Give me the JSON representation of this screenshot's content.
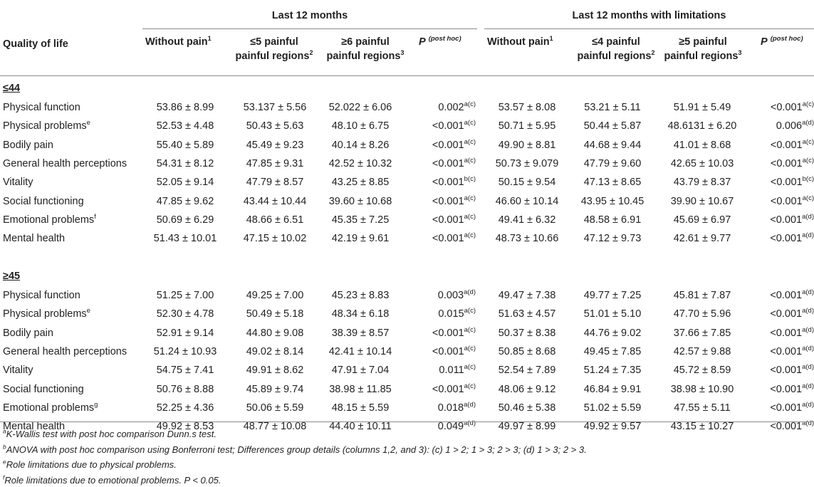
{
  "headers": {
    "group1": "Last 12 months",
    "group2": "Last 12 months with limitations",
    "qol": "Quality of life",
    "without_pain": "Without pain",
    "sup1": "1",
    "sup2": "2",
    "sup3": "3",
    "painful_regions": "painful regions",
    "g1_col2_prefix": "≤5 painful",
    "g1_col3_prefix": "≥6 painful",
    "g2_col2_prefix": "≤4 painful",
    "g2_col3_prefix": "≥5 painful",
    "p_label": "P",
    "post_hoc": "(post hoc)"
  },
  "groups": [
    {
      "label": "≤44",
      "rows": [
        {
          "name": "Physical function",
          "sup": "",
          "v": [
            "53.86 ± 8.99",
            "53.137 ± 5.56",
            "52.022 ± 6.06"
          ],
          "p1": "0.002",
          "p1s": "a(c)",
          "w": [
            "53.57 ± 8.08",
            "53.21 ± 5.11",
            "51.91 ± 5.49"
          ],
          "p2": "<0.001",
          "p2s": "a(c)"
        },
        {
          "name": "Physical problems",
          "sup": "e",
          "v": [
            "52.53 ± 4.48",
            "50.43 ± 5.63",
            "48.10 ± 6.75"
          ],
          "p1": "<0.001",
          "p1s": "a(c)",
          "w": [
            "50.71 ± 5.95",
            "50.44 ± 5.87",
            "48.6131 ± 6.20"
          ],
          "p2": "0.006",
          "p2s": "a(d)"
        },
        {
          "name": "Bodily pain",
          "sup": "",
          "v": [
            "55.40 ± 5.89",
            "45.49 ± 9.23",
            "40.14 ± 8.26"
          ],
          "p1": "<0.001",
          "p1s": "a(c)",
          "w": [
            "49.90 ± 8.81",
            "44.68 ± 9.44",
            "41.01 ± 8.68"
          ],
          "p2": "<0.001",
          "p2s": "a(c)"
        },
        {
          "name": "General health perceptions",
          "sup": "",
          "v": [
            "54.31 ± 8.12",
            "47.85 ± 9.31",
            "42.52 ± 10.32"
          ],
          "p1": "<0.001",
          "p1s": "a(c)",
          "w": [
            "50.73 ± 9.079",
            "47.79 ± 9.60",
            "42.65 ± 10.03"
          ],
          "p2": "<0.001",
          "p2s": "a(c)"
        },
        {
          "name": "Vitality",
          "sup": "",
          "v": [
            "52.05 ± 9.14",
            "47.79 ± 8.57",
            "43.25 ± 8.85"
          ],
          "p1": "<0.001",
          "p1s": "b(c)",
          "w": [
            "50.15 ± 9.54",
            "47.13 ± 8.65",
            "43.79 ± 8.37"
          ],
          "p2": "<0.001",
          "p2s": "b(c)"
        },
        {
          "name": "Social functioning",
          "sup": "",
          "v": [
            "47.85 ± 9.62",
            "43.44 ± 10.44",
            "39.60 ± 10.68"
          ],
          "p1": "<0.001",
          "p1s": "a(c)",
          "w": [
            "46.60 ± 10.14",
            "43.95 ± 10.45",
            "39.90 ± 10.67"
          ],
          "p2": "<0.001",
          "p2s": "a(c)"
        },
        {
          "name": "Emotional problems",
          "sup": "f",
          "v": [
            "50.69 ± 6.29",
            "48.66 ± 6.51",
            "45.35 ± 7.25"
          ],
          "p1": "<0.001",
          "p1s": "a(c)",
          "w": [
            "49.41 ± 6.32",
            "48.58 ± 6.91",
            "45.69 ± 6.97"
          ],
          "p2": "<0.001",
          "p2s": "a(d)"
        },
        {
          "name": "Mental health",
          "sup": "",
          "v": [
            "51.43 ± 10.01",
            "47.15 ± 10.02",
            "42.19 ± 9.61"
          ],
          "p1": "<0.001",
          "p1s": "a(c)",
          "w": [
            "48.73 ± 10.66",
            "47.12 ± 9.73",
            "42.61 ± 9.77"
          ],
          "p2": "<0.001",
          "p2s": "a(d)"
        }
      ]
    },
    {
      "label": "≥45",
      "rows": [
        {
          "name": "Physical function",
          "sup": "",
          "v": [
            "51.25 ± 7.00",
            "49.25 ± 7.00",
            "45.23 ± 8.83"
          ],
          "p1": "0.003",
          "p1s": "a(d)",
          "w": [
            "49.47 ± 7.38",
            "49.77 ± 7.25",
            "45.81 ± 7.87"
          ],
          "p2": "<0.001",
          "p2s": "a(d)"
        },
        {
          "name": "Physical problems",
          "sup": "e",
          "v": [
            "52.30 ± 4.78",
            "50.49 ± 5.18",
            "48.34 ± 6.18"
          ],
          "p1": "0.015",
          "p1s": "a(c)",
          "w": [
            "51.63 ± 4.57",
            "51.01 ± 5.10",
            "47.70 ± 5.96"
          ],
          "p2": "<0.001",
          "p2s": "a(d)"
        },
        {
          "name": "Bodily pain",
          "sup": "",
          "v": [
            "52.91 ± 9.14",
            "44.80 ± 9.08",
            "38.39 ± 8.57"
          ],
          "p1": "<0.001",
          "p1s": "a(c)",
          "w": [
            "50.37 ± 8.38",
            "44.76 ± 9.02",
            "37.66 ± 7.85"
          ],
          "p2": "<0.001",
          "p2s": "a(d)"
        },
        {
          "name": "General health perceptions",
          "sup": "",
          "v": [
            "51.24 ± 10.93",
            "49.02 ± 8.14",
            "42.41 ± 10.14"
          ],
          "p1": "<0.001",
          "p1s": "a(c)",
          "w": [
            "50.85 ± 8.68",
            "49.45 ± 7.85",
            "42.57 ± 9.88"
          ],
          "p2": "<0.001",
          "p2s": "a(d)"
        },
        {
          "name": "Vitality",
          "sup": "",
          "v": [
            "54.75 ± 7.41",
            "49.91 ± 8.62",
            "47.91 ± 7.04"
          ],
          "p1": "0.011",
          "p1s": "a(c)",
          "w": [
            "52.54 ± 7.89",
            "51.24 ± 7.35",
            "45.72 ± 8.59"
          ],
          "p2": "<0.001",
          "p2s": "a(d)"
        },
        {
          "name": "Social functioning",
          "sup": "",
          "v": [
            "50.76 ± 8.88",
            "45.89 ± 9.74",
            "38.98 ± 11.85"
          ],
          "p1": "<0.001",
          "p1s": "a(c)",
          "w": [
            "48.06 ± 9.12",
            "46.84 ± 9.91",
            "38.98 ± 10.90"
          ],
          "p2": "<0.001",
          "p2s": "a(d)"
        },
        {
          "name": "Emotional problems",
          "sup": "g",
          "v": [
            "52.25 ± 4.36",
            "50.06 ± 5.59",
            "48.15 ± 5.59"
          ],
          "p1": "0.018",
          "p1s": "a(d)",
          "w": [
            "50.46 ± 5.38",
            "51.02 ± 5.59",
            "47.55 ± 5.11"
          ],
          "p2": "<0.001",
          "p2s": "a(d)"
        },
        {
          "name": "Mental health",
          "sup": "",
          "v": [
            "49.92 ± 8.53",
            "48.77 ± 10.08",
            "44.40 ± 10.11"
          ],
          "p1": "0.049",
          "p1s": "a(d)",
          "w": [
            "49.97 ± 8.99",
            "49.92 ± 9.57",
            "43.15 ± 10.27"
          ],
          "p2": "<0.001",
          "p2s": "a(d)"
        }
      ]
    }
  ],
  "footnotes": [
    {
      "sup": "a",
      "text": "K-Wallis test with post hoc comparison Dunn.s test."
    },
    {
      "sup": "b",
      "text": "ANOVA with post hoc comparison using Bonferroni test; Differences group details (columns 1,2, and 3): (c) 1 > 2; 1 > 3; 2 > 3; (d) 1 > 3; 2 > 3."
    },
    {
      "sup": "e",
      "text": "Role limitations due to physical problems."
    },
    {
      "sup": "f",
      "text": "Role limitations due to emotional problems. P < 0.05."
    }
  ]
}
